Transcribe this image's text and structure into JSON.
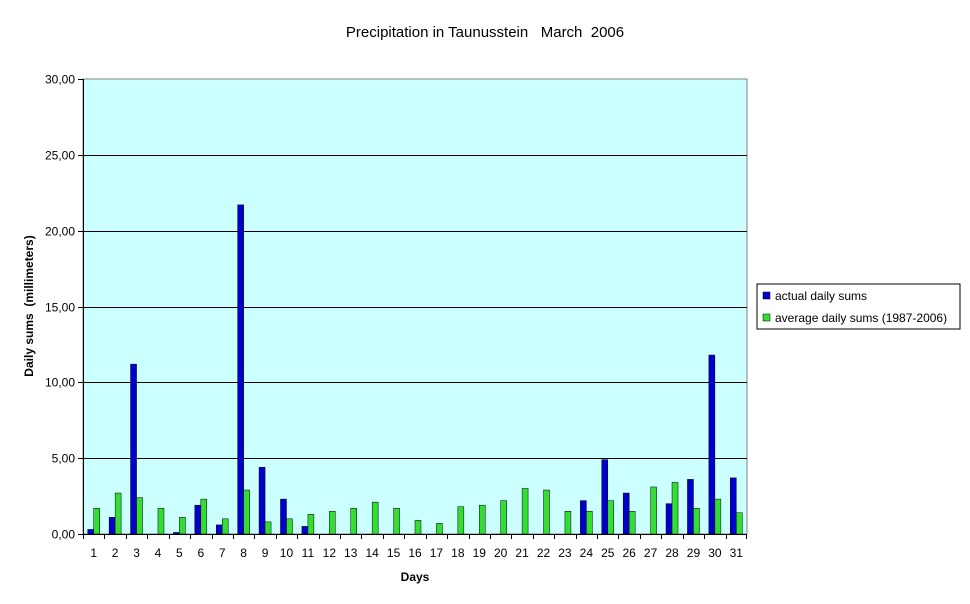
{
  "chart_data": {
    "type": "bar",
    "title": "Precipitation in Taunusstein   March  2006",
    "xlabel": "Days",
    "ylabel": "Daily sums  (millimeters)",
    "ylim": [
      0,
      30
    ],
    "ytick_values": [
      0,
      5,
      10,
      15,
      20,
      25,
      30
    ],
    "ytick_labels": [
      "0,00",
      "5,00",
      "10,00",
      "15,00",
      "20,00",
      "25,00",
      "30,00"
    ],
    "categories": [
      "1",
      "2",
      "3",
      "4",
      "5",
      "6",
      "7",
      "8",
      "9",
      "10",
      "11",
      "12",
      "13",
      "14",
      "15",
      "16",
      "17",
      "18",
      "19",
      "20",
      "21",
      "22",
      "23",
      "24",
      "25",
      "26",
      "27",
      "28",
      "29",
      "30",
      "31"
    ],
    "series": [
      {
        "name": "actual daily sums",
        "color": "#0000cc",
        "values": [
          0.3,
          1.1,
          11.2,
          0,
          0.1,
          1.9,
          0.6,
          21.7,
          4.4,
          2.3,
          0.5,
          0,
          0,
          0,
          0,
          0,
          0,
          0,
          0,
          0,
          0,
          0,
          0,
          2.2,
          4.9,
          2.7,
          0,
          2.0,
          3.6,
          11.8,
          3.7
        ]
      },
      {
        "name": "average daily sums (1987-2006)",
        "color": "#33dd33",
        "values": [
          1.7,
          2.7,
          2.4,
          1.7,
          1.1,
          2.3,
          1.0,
          2.9,
          0.8,
          1.0,
          1.3,
          1.5,
          1.7,
          2.1,
          1.7,
          0.9,
          0.7,
          1.8,
          1.9,
          2.2,
          3.0,
          2.9,
          1.5,
          1.5,
          2.2,
          1.5,
          3.1,
          3.4,
          1.7,
          2.3,
          1.4
        ]
      }
    ],
    "grid": true,
    "plot_background": "#ccffff",
    "legend_position": "right"
  }
}
